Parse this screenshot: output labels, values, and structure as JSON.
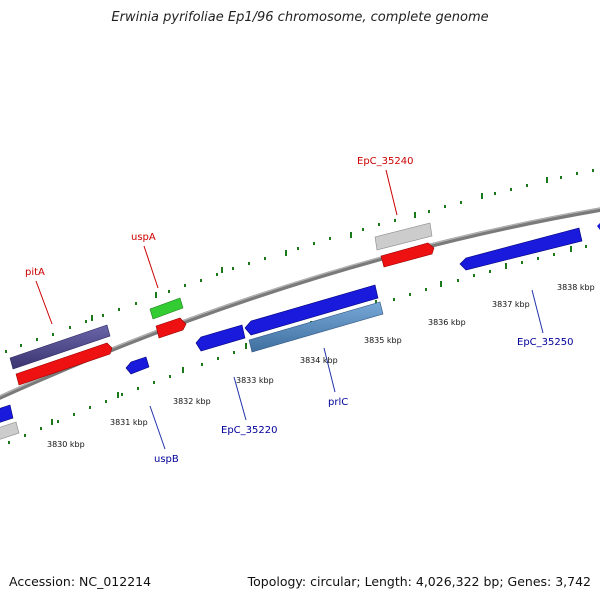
{
  "header": {
    "title": "Erwinia pyrifoliae Ep1/96 chromosome, complete genome"
  },
  "footer": {
    "accession": "Accession: NC_012214",
    "summary": "Topology: circular; Length: 4,026,322 bp; Genes: 3,742"
  },
  "colors": {
    "backbone": "#888888",
    "tick": "#1a7a1a",
    "top_label": "#cc0000",
    "bottom_label": "#000099",
    "callout_top": "#cc0000",
    "callout_bottom": "#2233aa"
  },
  "scale": {
    "ticks": [
      {
        "label": "3830 kbp"
      },
      {
        "label": "3831 kbp"
      },
      {
        "label": "3832 kbp"
      },
      {
        "label": "3833 kbp"
      },
      {
        "label": "3834 kbp"
      },
      {
        "label": "3835 kbp"
      },
      {
        "label": "3836 kbp"
      },
      {
        "label": "3837 kbp"
      },
      {
        "label": "3838 kbp"
      }
    ]
  },
  "genes": {
    "top": [
      {
        "label": "pitA",
        "color": "#cc0000"
      },
      {
        "label": "uspA",
        "color": "#cc0000"
      },
      {
        "label": "EpC_35240",
        "color": "#cc0000"
      }
    ],
    "bottom": [
      {
        "label": "uspB",
        "color": "#000099"
      },
      {
        "label": "EpC_35220",
        "color": "#000099"
      },
      {
        "label": "prlC",
        "color": "#000099"
      },
      {
        "label": "EpC_35250",
        "color": "#000099"
      }
    ]
  }
}
